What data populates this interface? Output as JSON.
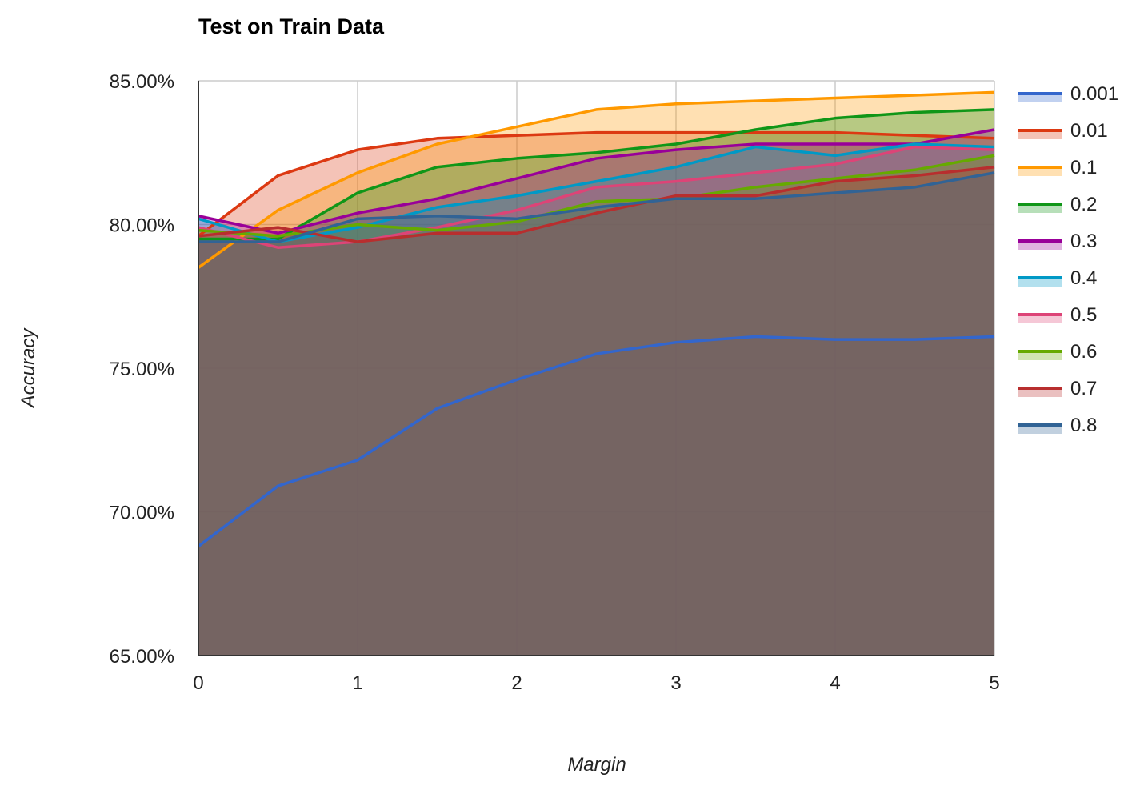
{
  "chart_data": {
    "type": "area",
    "title": "Test on Train Data",
    "xlabel": "Margin",
    "ylabel": "Accuracy",
    "x": [
      0,
      0.5,
      1,
      1.5,
      2,
      2.5,
      3,
      3.5,
      4,
      4.5,
      5
    ],
    "xticks": [
      "0",
      "1",
      "2",
      "3",
      "4",
      "5"
    ],
    "xlim": [
      0,
      5
    ],
    "ylim": [
      65,
      85
    ],
    "yticks": [
      "65.00%",
      "70.00%",
      "75.00%",
      "80.00%",
      "85.00%"
    ],
    "grid": true,
    "legend_position": "right",
    "series": [
      {
        "name": "0.001",
        "color": "#3366cc",
        "values": [
          68.8,
          70.9,
          71.8,
          73.6,
          74.6,
          75.5,
          75.9,
          76.1,
          76.0,
          76.0,
          76.1
        ]
      },
      {
        "name": "0.01",
        "color": "#dc3912",
        "values": [
          79.6,
          81.7,
          82.6,
          83.0,
          83.1,
          83.2,
          83.2,
          83.2,
          83.2,
          83.1,
          83.0
        ]
      },
      {
        "name": "0.1",
        "color": "#ff9900",
        "values": [
          78.5,
          80.5,
          81.8,
          82.8,
          83.4,
          84.0,
          84.2,
          84.3,
          84.4,
          84.5,
          84.6
        ]
      },
      {
        "name": "0.2",
        "color": "#109618",
        "values": [
          79.5,
          79.5,
          81.1,
          82.0,
          82.3,
          82.5,
          82.8,
          83.3,
          83.7,
          83.9,
          84.0
        ]
      },
      {
        "name": "0.3",
        "color": "#990099",
        "values": [
          80.3,
          79.7,
          80.4,
          80.9,
          81.6,
          82.3,
          82.6,
          82.8,
          82.8,
          82.8,
          83.3
        ]
      },
      {
        "name": "0.4",
        "color": "#0099c6",
        "values": [
          80.2,
          79.4,
          79.9,
          80.6,
          81.0,
          81.5,
          82.0,
          82.7,
          82.4,
          82.8,
          82.7
        ]
      },
      {
        "name": "0.5",
        "color": "#dd4477",
        "values": [
          79.9,
          79.2,
          79.4,
          79.9,
          80.5,
          81.3,
          81.5,
          81.8,
          82.1,
          82.7,
          82.6
        ]
      },
      {
        "name": "0.6",
        "color": "#66aa00",
        "values": [
          79.8,
          79.6,
          80.0,
          79.8,
          80.1,
          80.8,
          80.9,
          81.3,
          81.6,
          81.9,
          82.4
        ]
      },
      {
        "name": "0.7",
        "color": "#b82e2e",
        "values": [
          79.6,
          79.9,
          79.4,
          79.7,
          79.7,
          80.4,
          81.0,
          81.0,
          81.5,
          81.7,
          82.0
        ]
      },
      {
        "name": "0.8",
        "color": "#316395",
        "values": [
          79.4,
          79.4,
          80.2,
          80.3,
          80.2,
          80.6,
          80.9,
          80.9,
          81.1,
          81.3,
          81.8
        ]
      }
    ]
  }
}
